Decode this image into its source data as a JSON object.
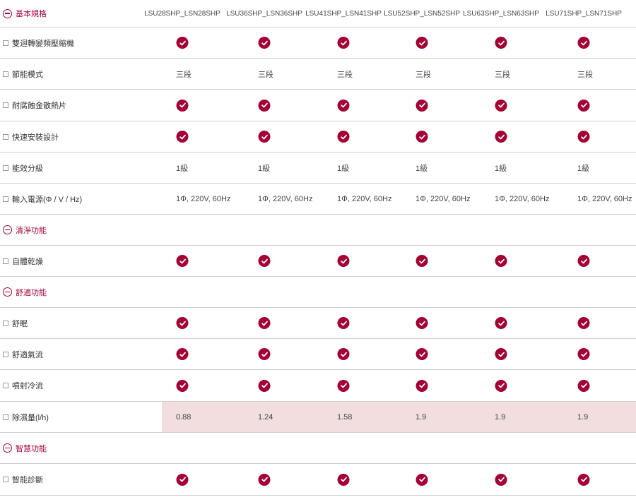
{
  "models": [
    "LSU28SHP_LSN28SHP",
    "LSU36SHP_LSN36SHP",
    "LSU41SHP_LSN41SHP",
    "LSU52SHP_LSN52SHP",
    "LSU63SHP_LSN63SHP",
    "LSU71SHP_LSN71SHP"
  ],
  "accent_color": "#a50034",
  "highlight_color": "#f2dede",
  "rows": [
    {
      "type": "section",
      "label": "基本規格",
      "icon": "collapse-minus-icon"
    },
    {
      "type": "spec",
      "label": "雙迴轉變頻壓縮機",
      "kind": "check",
      "values": [
        true,
        true,
        true,
        true,
        true,
        true
      ]
    },
    {
      "type": "spec",
      "label": "節能模式",
      "kind": "text",
      "values": [
        "三段",
        "三段",
        "三段",
        "三段",
        "三段",
        "三段"
      ]
    },
    {
      "type": "spec",
      "label": "耐腐蝕金散熱片",
      "kind": "check",
      "values": [
        true,
        true,
        true,
        true,
        true,
        true
      ]
    },
    {
      "type": "spec",
      "label": "快速安裝設計",
      "kind": "check",
      "values": [
        true,
        true,
        true,
        true,
        true,
        true
      ]
    },
    {
      "type": "spec",
      "label": "能效分級",
      "kind": "text",
      "values": [
        "1級",
        "1級",
        "1級",
        "1級",
        "1級",
        "1級"
      ]
    },
    {
      "type": "spec",
      "label": "輸入電源(Φ / V / Hz)",
      "kind": "text",
      "values": [
        "1Φ, 220V, 60Hz",
        "1Φ, 220V, 60Hz",
        "1Φ, 220V, 60Hz",
        "1Φ, 220V, 60Hz",
        "1Φ, 220V, 60Hz",
        "1Φ, 220V, 60Hz"
      ]
    },
    {
      "type": "section",
      "label": "清淨功能",
      "icon": "collapse-minus-icon"
    },
    {
      "type": "spec",
      "label": "自體乾燥",
      "kind": "check",
      "values": [
        true,
        true,
        true,
        true,
        true,
        true
      ]
    },
    {
      "type": "section",
      "label": "舒適功能",
      "icon": "collapse-minus-icon"
    },
    {
      "type": "spec",
      "label": "舒眠",
      "kind": "check",
      "values": [
        true,
        true,
        true,
        true,
        true,
        true
      ]
    },
    {
      "type": "spec",
      "label": "舒適氣流",
      "kind": "check",
      "values": [
        true,
        true,
        true,
        true,
        true,
        true
      ]
    },
    {
      "type": "spec",
      "label": "噴射冷流",
      "kind": "check",
      "values": [
        true,
        true,
        true,
        true,
        true,
        true
      ]
    },
    {
      "type": "spec",
      "label": "除濕量(l/h)",
      "kind": "text",
      "highlight": true,
      "values": [
        "0.88",
        "1.24",
        "1.58",
        "1.9",
        "1.9",
        "1.9"
      ]
    },
    {
      "type": "section",
      "label": "智慧功能",
      "icon": "collapse-minus-icon"
    },
    {
      "type": "spec",
      "label": "智能診斷",
      "kind": "check",
      "values": [
        true,
        true,
        true,
        true,
        true,
        true
      ]
    }
  ]
}
